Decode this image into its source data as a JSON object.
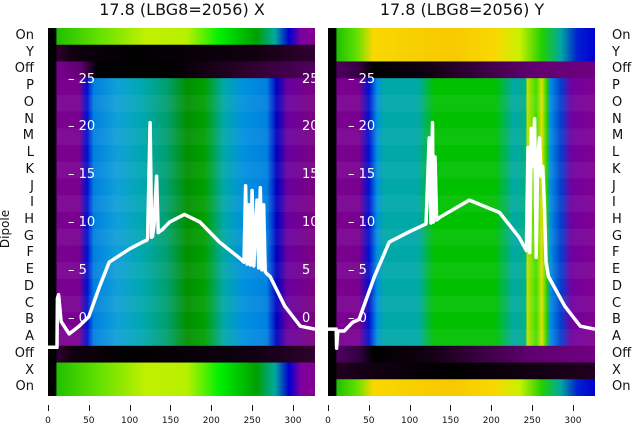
{
  "chart_data": [
    {
      "type": "heatmap",
      "title": "17.8 (LBG8=2056) X",
      "ylabel": "Dipole",
      "row_labels": [
        "On",
        "Y",
        "Off",
        "P",
        "O",
        "N",
        "M",
        "L",
        "K",
        "J",
        "I",
        "H",
        "G",
        "F",
        "E",
        "D",
        "C",
        "B",
        "A",
        "Off",
        "X",
        "On"
      ],
      "row_bands": [
        "on",
        "dark",
        "off",
        "main",
        "main",
        "main",
        "main",
        "main",
        "main",
        "main",
        "main",
        "main",
        "main",
        "main",
        "main",
        "main",
        "main",
        "main",
        "main",
        "dark",
        "on",
        "on"
      ],
      "xticks": [
        "0",
        "50",
        "100",
        "150",
        "200",
        "250",
        "300"
      ],
      "xlim": [
        0,
        327
      ],
      "overlay_yticks": [
        "25",
        "20",
        "15",
        "10",
        "5",
        "0"
      ],
      "overlay_ylim": [
        -8,
        30.5
      ],
      "bands": {
        "main": [
          [
            0,
            "#000000"
          ],
          [
            10,
            "#000000"
          ],
          [
            10.5,
            "#7a0090"
          ],
          [
            38,
            "#7a0090"
          ],
          [
            48,
            "#0010d0"
          ],
          [
            56,
            "#0080e0"
          ],
          [
            85,
            "#10a0d8"
          ],
          [
            115,
            "#00a8b0"
          ],
          [
            145,
            "#00a070"
          ],
          [
            170,
            "#009000"
          ],
          [
            192,
            "#00a000"
          ],
          [
            215,
            "#00a8a8"
          ],
          [
            240,
            "#0090e0"
          ],
          [
            268,
            "#0080e0"
          ],
          [
            280,
            "#0000c0"
          ],
          [
            293,
            "#6a00a0"
          ],
          [
            327,
            "#7a0080"
          ]
        ],
        "on": [
          [
            0,
            "#000000"
          ],
          [
            10,
            "#000000"
          ],
          [
            10.5,
            "#20c000"
          ],
          [
            60,
            "#60e000"
          ],
          [
            120,
            "#c0f000"
          ],
          [
            170,
            "#b8f000"
          ],
          [
            210,
            "#00f000"
          ],
          [
            255,
            "#00a000"
          ],
          [
            278,
            "#00a8a0"
          ],
          [
            295,
            "#0000d0"
          ],
          [
            310,
            "#8000a0"
          ],
          [
            327,
            "#800090"
          ]
        ],
        "dark": [
          [
            0,
            "#000000"
          ],
          [
            10,
            "#000000"
          ],
          [
            10.5,
            "#300030"
          ],
          [
            30,
            "#100010"
          ],
          [
            100,
            "#000000"
          ],
          [
            250,
            "#100010"
          ],
          [
            327,
            "#300030"
          ]
        ],
        "off": [
          [
            0,
            "#000000"
          ],
          [
            10,
            "#000000"
          ],
          [
            10.5,
            "#7a0090"
          ],
          [
            40,
            "#600070"
          ],
          [
            60,
            "#000000"
          ],
          [
            150,
            "#000000"
          ],
          [
            250,
            "#300030"
          ],
          [
            327,
            "#500060"
          ]
        ]
      },
      "series": [
        {
          "name": "profile",
          "x": [
            0,
            11,
            11.5,
            13,
            16,
            26,
            38,
            50,
            63,
            75,
            100,
            118,
            121,
            122,
            125,
            127,
            128,
            130,
            133,
            135,
            138,
            140,
            142,
            149,
            167,
            186,
            210,
            235,
            240,
            242,
            244,
            246,
            248,
            250,
            252,
            256,
            258,
            260,
            262,
            264,
            266,
            268,
            272,
            290,
            309,
            327
          ],
          "y": [
            -2.9,
            -2.9,
            2.2,
            2.6,
            -0.2,
            -1.5,
            -0.7,
            0.3,
            3.4,
            6,
            7.4,
            8.2,
            8.3,
            8.5,
            20.6,
            8.6,
            8.7,
            10,
            15,
            9.1,
            9.3,
            9.4,
            9.6,
            10.2,
            11,
            10.2,
            8.1,
            6.4,
            6,
            14,
            5.8,
            12,
            5.7,
            13.5,
            5.6,
            12.5,
            5.4,
            13.8,
            5.2,
            12,
            5,
            4.8,
            4.5,
            1.4,
            -0.7,
            -1
          ]
        }
      ]
    },
    {
      "type": "heatmap",
      "title": "17.8 (LBG8=2056) Y",
      "row_labels": [
        "On",
        "Y",
        "Off",
        "P",
        "O",
        "N",
        "M",
        "L",
        "K",
        "J",
        "I",
        "H",
        "G",
        "F",
        "E",
        "D",
        "C",
        "B",
        "A",
        "Off",
        "X",
        "On"
      ],
      "row_bands": [
        "on",
        "on",
        "off",
        "main",
        "main",
        "main",
        "main",
        "main",
        "main",
        "main",
        "main",
        "main",
        "main",
        "main",
        "main",
        "main",
        "main",
        "main",
        "main",
        "off",
        "dark",
        "on"
      ],
      "xticks": [
        "0",
        "50",
        "100",
        "150",
        "200",
        "250",
        "300"
      ],
      "xlim": [
        0,
        327
      ],
      "overlay_yticks": [
        "25",
        "20",
        "15",
        "10",
        "5",
        "0"
      ],
      "overlay_ylim": [
        -8,
        30.5
      ],
      "bands": {
        "main": [
          [
            0,
            "#000000"
          ],
          [
            10,
            "#000000"
          ],
          [
            10.5,
            "#7a0090"
          ],
          [
            38,
            "#7a0090"
          ],
          [
            50,
            "#0010d0"
          ],
          [
            60,
            "#0090e0"
          ],
          [
            68,
            "#00a8a8"
          ],
          [
            110,
            "#00a8a8"
          ],
          [
            130,
            "#00c000"
          ],
          [
            205,
            "#00c000"
          ],
          [
            228,
            "#00a8a8"
          ],
          [
            242,
            "#00b080"
          ],
          [
            244,
            "#c0e000"
          ],
          [
            255,
            "#40e000"
          ],
          [
            262,
            "#e0e000"
          ],
          [
            268,
            "#20d000"
          ],
          [
            272,
            "#0090e0"
          ],
          [
            285,
            "#0040d0"
          ],
          [
            298,
            "#7000a0"
          ],
          [
            327,
            "#800090"
          ]
        ],
        "on": [
          [
            0,
            "#000000"
          ],
          [
            10,
            "#000000"
          ],
          [
            10.5,
            "#20c000"
          ],
          [
            35,
            "#60e000"
          ],
          [
            55,
            "#f8d800"
          ],
          [
            150,
            "#f8c800"
          ],
          [
            205,
            "#f8d800"
          ],
          [
            235,
            "#c8f000"
          ],
          [
            262,
            "#20d000"
          ],
          [
            285,
            "#00a8a0"
          ],
          [
            305,
            "#0020d0"
          ],
          [
            327,
            "#0000d0"
          ]
        ],
        "dark": [
          [
            0,
            "#000000"
          ],
          [
            10,
            "#000000"
          ],
          [
            10.5,
            "#200020"
          ],
          [
            60,
            "#100010"
          ],
          [
            150,
            "#000000"
          ],
          [
            327,
            "#200020"
          ]
        ],
        "off": [
          [
            0,
            "#000000"
          ],
          [
            10,
            "#000000"
          ],
          [
            10.5,
            "#500060"
          ],
          [
            40,
            "#300040"
          ],
          [
            55,
            "#000000"
          ],
          [
            120,
            "#100010"
          ],
          [
            250,
            "#600070"
          ],
          [
            327,
            "#700080"
          ]
        ]
      },
      "series": [
        {
          "name": "profile",
          "x": [
            0,
            10,
            10.5,
            12,
            20,
            30,
            38,
            57,
            75,
            100,
            120,
            124,
            126,
            128,
            129,
            131,
            133,
            137,
            173,
            210,
            234,
            243,
            245,
            247,
            249,
            251,
            253,
            255,
            257,
            259,
            261,
            263,
            265,
            267,
            270,
            290,
            309,
            327
          ],
          "y": [
            -1,
            -1,
            -3,
            -1.2,
            -1.2,
            -0.3,
            0,
            4.5,
            8.1,
            9.2,
            10,
            19,
            10.1,
            20.6,
            10.2,
            17,
            10.4,
            10.7,
            12.5,
            11.2,
            8.6,
            7.2,
            18,
            7,
            20,
            16,
            21,
            6.5,
            17,
            19,
            15,
            16,
            12,
            6,
            4.5,
            1.4,
            -0.7,
            -1
          ]
        }
      ]
    }
  ]
}
